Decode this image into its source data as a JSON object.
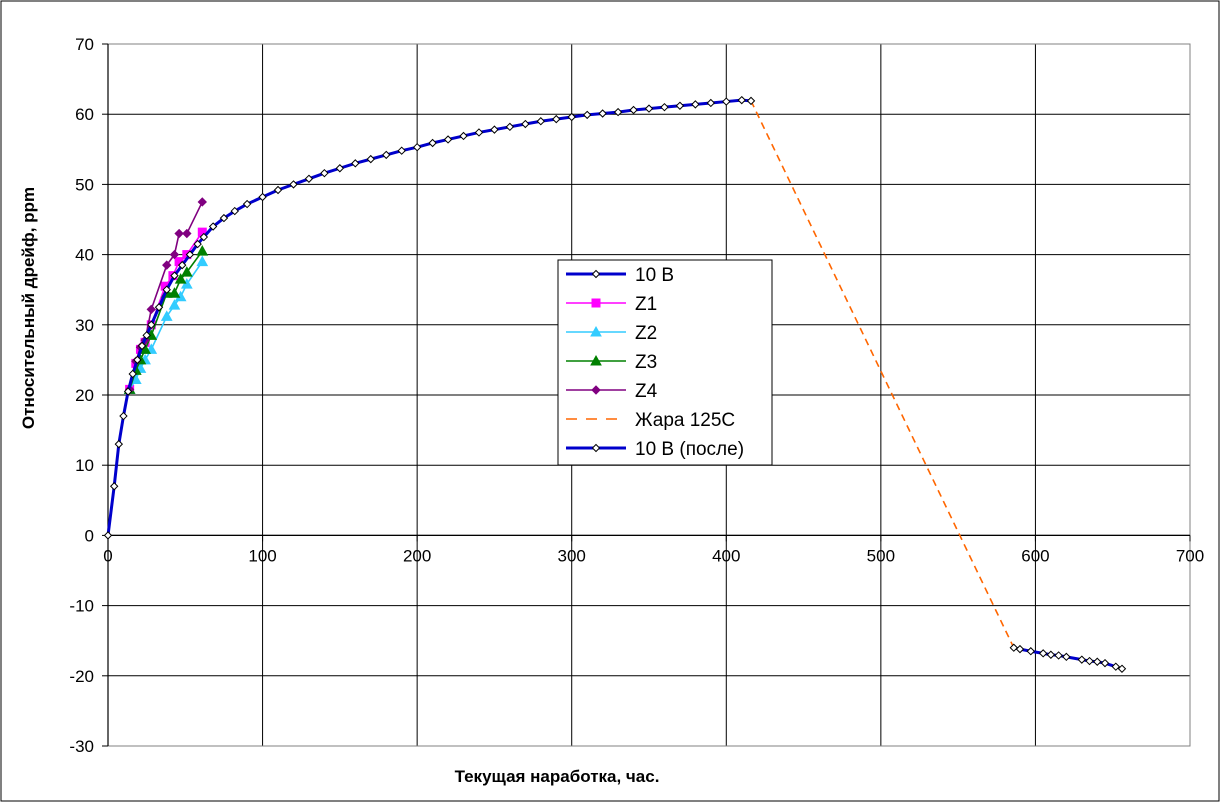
{
  "chart_data": {
    "type": "line",
    "title": "",
    "xlabel": "Текущая наработка, час.",
    "ylabel": "Относительный дрейф, ppm",
    "xlim": [
      0,
      700
    ],
    "ylim": [
      -30,
      70
    ],
    "xticks": [
      0,
      100,
      200,
      300,
      400,
      500,
      600,
      700
    ],
    "yticks": [
      -30,
      -20,
      -10,
      0,
      10,
      20,
      30,
      40,
      50,
      60,
      70
    ],
    "xtick_labels": [
      "0",
      "100",
      "200",
      "300",
      "400",
      "500",
      "600",
      "700"
    ],
    "ytick_labels": [
      "-30",
      "-20",
      "-10",
      "0",
      "10",
      "20",
      "30",
      "40",
      "50",
      "60",
      "70"
    ],
    "grid": true,
    "legend_position": "center",
    "series": [
      {
        "name": "10 В",
        "color": "#0000cc",
        "line": "solid",
        "marker": "diamond-open",
        "x": [
          0,
          4,
          7,
          10,
          13,
          16,
          19,
          22,
          25,
          28,
          33,
          38,
          43,
          48,
          53,
          58,
          62,
          68,
          75,
          82,
          90,
          100,
          110,
          120,
          130,
          140,
          150,
          160,
          170,
          180,
          190,
          200,
          210,
          220,
          230,
          240,
          250,
          260,
          270,
          280,
          290,
          300,
          310,
          320,
          330,
          340,
          350,
          360,
          370,
          380,
          390,
          400,
          410,
          416
        ],
        "y": [
          0,
          7,
          13,
          17,
          20.5,
          23,
          25,
          27,
          28.5,
          30,
          32.5,
          35,
          37,
          38.5,
          40,
          41.5,
          42.5,
          44,
          45.2,
          46.2,
          47.2,
          48.2,
          49.2,
          50,
          50.8,
          51.6,
          52.3,
          53,
          53.6,
          54.2,
          54.8,
          55.3,
          55.9,
          56.4,
          56.9,
          57.4,
          57.8,
          58.2,
          58.6,
          59,
          59.3,
          59.6,
          59.9,
          60.1,
          60.3,
          60.6,
          60.8,
          61,
          61.2,
          61.4,
          61.6,
          61.8,
          62,
          61.9
        ]
      },
      {
        "name": "Z1",
        "color": "#ff00ff",
        "line": "solid",
        "marker": "square",
        "x": [
          14,
          18,
          21,
          24,
          28,
          37,
          42,
          46,
          51,
          61
        ],
        "y": [
          20.8,
          24.5,
          26.5,
          27.5,
          30,
          35.5,
          37,
          39,
          40,
          43.2
        ]
      },
      {
        "name": "Z2",
        "color": "#33ccff",
        "line": "solid",
        "marker": "triangle",
        "x": [
          14,
          18,
          21,
          24,
          28,
          38,
          43,
          47,
          51,
          61
        ],
        "y": [
          20.8,
          22.2,
          23.8,
          25,
          26.5,
          31.2,
          32.8,
          34,
          35.8,
          39
        ]
      },
      {
        "name": "Z3",
        "color": "#008000",
        "line": "solid",
        "marker": "triangle",
        "x": [
          14,
          18,
          21,
          24,
          28,
          38,
          43,
          47,
          51,
          61
        ],
        "y": [
          20.8,
          23.5,
          25,
          26.5,
          28.5,
          34.5,
          34.5,
          36.5,
          37.5,
          40.5
        ]
      },
      {
        "name": "Z4",
        "color": "#800080",
        "line": "solid",
        "marker": "diamond",
        "x": [
          14,
          18,
          21,
          24,
          28,
          38,
          43,
          46,
          51,
          61
        ],
        "y": [
          20.8,
          24.8,
          26.8,
          27.8,
          32.2,
          38.5,
          40,
          43,
          43,
          47.5
        ]
      },
      {
        "name": "Жара 125С",
        "color": "#ff6600",
        "line": "dashed",
        "marker": "none",
        "x": [
          416,
          586
        ],
        "y": [
          61.9,
          -16
        ]
      },
      {
        "name": "10 В (после)",
        "color": "#0000cc",
        "line": "solid",
        "marker": "diamond-open",
        "x": [
          586,
          590,
          597,
          605,
          610,
          615,
          620,
          630,
          635,
          640,
          645,
          652,
          656
        ],
        "y": [
          -16,
          -16.2,
          -16.5,
          -16.8,
          -17,
          -17.1,
          -17.3,
          -17.7,
          -17.9,
          -18,
          -18.2,
          -18.7,
          -19
        ]
      }
    ]
  }
}
